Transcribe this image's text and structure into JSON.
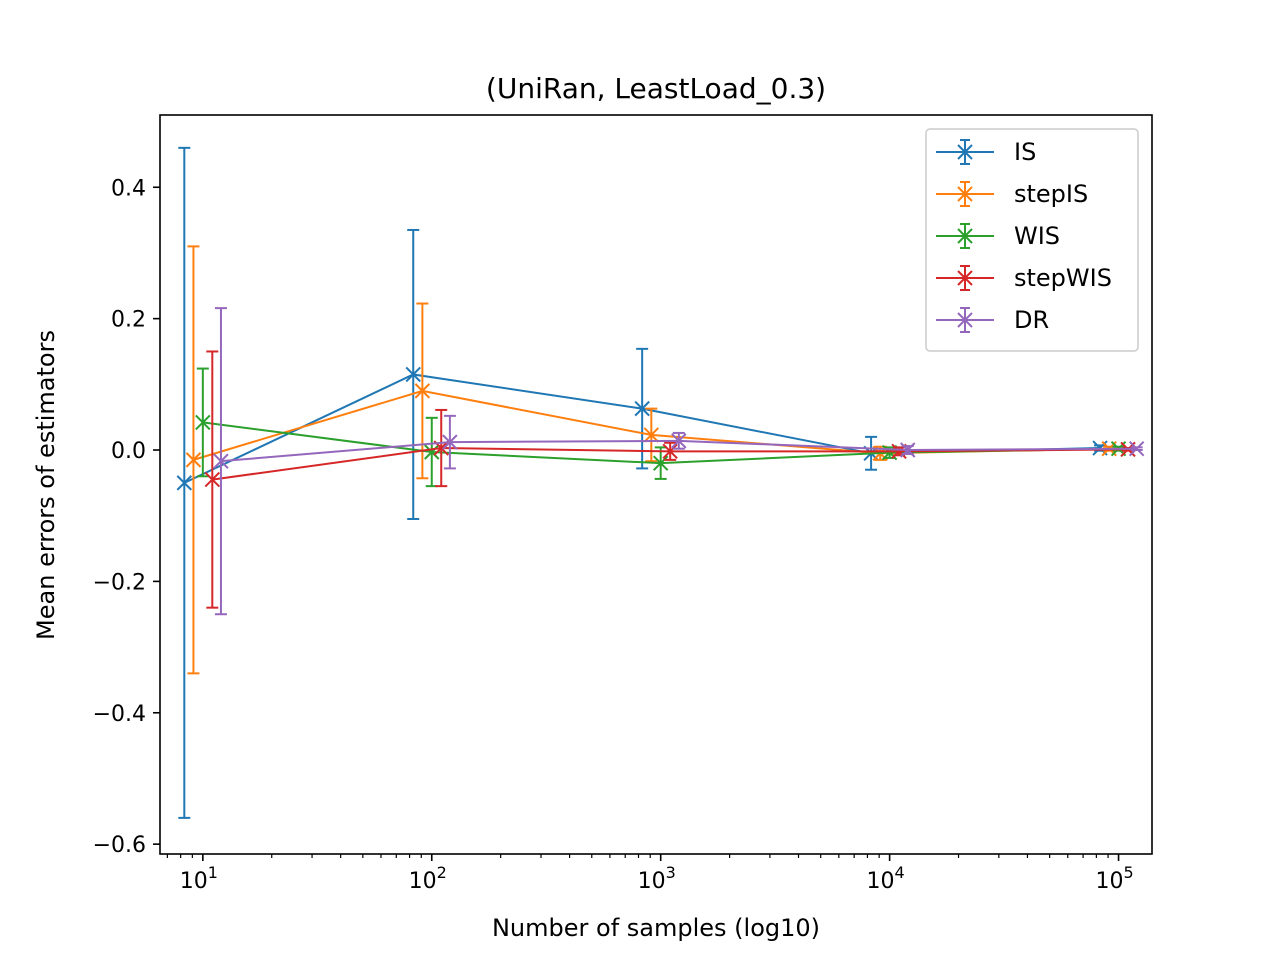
{
  "chart_data": {
    "type": "line",
    "title": "(UniRan, LeastLoad_0.3)",
    "xlabel": "Number of samples (log10)",
    "ylabel": "Mean errors of estimators",
    "x_scale": "log10",
    "xlim": [
      6.5,
      140000
    ],
    "ylim": [
      -0.615,
      0.51
    ],
    "x_ticks": [
      {
        "value": 10,
        "base": "10",
        "exp": "1"
      },
      {
        "value": 100,
        "base": "10",
        "exp": "2"
      },
      {
        "value": 1000,
        "base": "10",
        "exp": "3"
      },
      {
        "value": 10000,
        "base": "10",
        "exp": "4"
      },
      {
        "value": 100000,
        "base": "10",
        "exp": "5"
      }
    ],
    "y_ticks": [
      {
        "value": 0.4,
        "label": "0.4"
      },
      {
        "value": 0.2,
        "label": "0.2"
      },
      {
        "value": 0.0,
        "label": "0.0"
      },
      {
        "value": -0.2,
        "label": "−0.2"
      },
      {
        "value": -0.4,
        "label": "−0.4"
      },
      {
        "value": -0.6,
        "label": "−0.6"
      }
    ],
    "grid": false,
    "legend_position": "top-right",
    "series": [
      {
        "name": "IS",
        "color": "#1f77b4",
        "x": [
          8.3,
          83,
          830,
          8300,
          83000
        ],
        "y": [
          -0.05,
          0.115,
          0.063,
          -0.005,
          0.003
        ],
        "err": [
          0.51,
          0.22,
          0.091,
          0.025,
          0.004
        ]
      },
      {
        "name": "stepIS",
        "color": "#ff7f0e",
        "x": [
          9.1,
          91,
          910,
          9100,
          91000
        ],
        "y": [
          -0.015,
          0.09,
          0.023,
          -0.005,
          0.002
        ],
        "err": [
          0.325,
          0.133,
          0.04,
          0.01,
          0.003
        ]
      },
      {
        "name": "WIS",
        "color": "#2ca02c",
        "x": [
          10,
          100,
          1000,
          10000,
          100000
        ],
        "y": [
          0.042,
          -0.003,
          -0.02,
          -0.004,
          0.002
        ],
        "err": [
          0.082,
          0.052,
          0.024,
          0.008,
          0.003
        ]
      },
      {
        "name": "stepWIS",
        "color": "#d62728",
        "x": [
          11,
          110,
          1100,
          11000,
          110000
        ],
        "y": [
          -0.045,
          0.003,
          -0.002,
          -0.002,
          0.001
        ],
        "err": [
          0.195,
          0.058,
          0.013,
          0.006,
          0.002
        ]
      },
      {
        "name": "DR",
        "color": "#9467bd",
        "x": [
          12,
          120,
          1200,
          12000,
          120000
        ],
        "y": [
          -0.017,
          0.012,
          0.014,
          0.0,
          0.002
        ],
        "err": [
          0.233,
          0.04,
          0.012,
          0.006,
          0.002
        ]
      }
    ]
  }
}
